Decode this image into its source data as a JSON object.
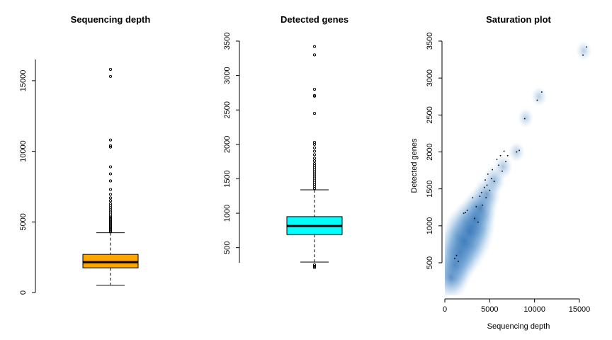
{
  "chart_data": [
    {
      "type": "boxplot",
      "title": "Sequencing depth",
      "xlabel": "",
      "ylabel": "",
      "ylim": [
        0,
        16500
      ],
      "yticks": [
        0,
        5000,
        10000,
        15000
      ],
      "yticklabels": [
        "0",
        "5000",
        "10000",
        "15000"
      ],
      "fill_color": "#FFA500",
      "box": {
        "whisker_low": 520,
        "q1": 1750,
        "median": 2150,
        "q3": 2700,
        "whisker_high": 4230
      },
      "outliers": [
        4300,
        4380,
        4450,
        4520,
        4600,
        4680,
        4750,
        4830,
        4900,
        4980,
        5050,
        5130,
        5200,
        5300,
        5400,
        5550,
        5700,
        5850,
        6000,
        6150,
        6300,
        6500,
        6700,
        6950,
        7300,
        7900,
        8400,
        8900,
        10300,
        10400,
        10800,
        15300,
        15800
      ]
    },
    {
      "type": "boxplot",
      "title": "Detected genes",
      "xlabel": "",
      "ylabel": "",
      "ylim": [
        270,
        3500
      ],
      "yticks": [
        500,
        1000,
        1500,
        2000,
        2500,
        3000,
        3500
      ],
      "yticklabels": [
        "500",
        "1000",
        "1500",
        "2000",
        "2500",
        "3000",
        "3500"
      ],
      "fill_color": "#00FFFF",
      "box": {
        "whisker_low": 290,
        "q1": 690,
        "median": 815,
        "q3": 950,
        "whisker_high": 1340
      },
      "outliers": [
        210,
        230,
        250,
        1360,
        1390,
        1420,
        1450,
        1480,
        1510,
        1540,
        1570,
        1600,
        1630,
        1660,
        1690,
        1720,
        1760,
        1800,
        1850,
        1900,
        1950,
        2000,
        2030,
        2450,
        2700,
        2710,
        2800,
        3300,
        3420
      ]
    },
    {
      "type": "scatter",
      "title": "Saturation plot",
      "xlabel": "Sequencing depth",
      "ylabel": "Detected genes",
      "xlim": [
        0,
        16200
      ],
      "ylim": [
        130,
        3520
      ],
      "xticks": [
        0,
        5000,
        10000,
        15000
      ],
      "xticklabels": [
        "0",
        "5000",
        "10000",
        "15000"
      ],
      "yticks": [
        500,
        1000,
        1500,
        2000,
        2500,
        3000,
        3500
      ],
      "yticklabels": [
        "500",
        "1000",
        "1500",
        "2000",
        "2500",
        "3000",
        "3500"
      ],
      "density_color": "#1F5FA8",
      "density_blobs": [
        {
          "x": 700,
          "y": 300,
          "w": 0.6
        },
        {
          "x": 1200,
          "y": 480,
          "w": 0.7
        },
        {
          "x": 1700,
          "y": 650,
          "w": 0.85
        },
        {
          "x": 2200,
          "y": 800,
          "w": 1.0
        },
        {
          "x": 2800,
          "y": 930,
          "w": 0.95
        },
        {
          "x": 3400,
          "y": 1080,
          "w": 0.75
        },
        {
          "x": 4000,
          "y": 1250,
          "w": 0.55
        },
        {
          "x": 4700,
          "y": 1430,
          "w": 0.38
        },
        {
          "x": 5500,
          "y": 1620,
          "w": 0.25
        },
        {
          "x": 6500,
          "y": 1800,
          "w": 0.15
        },
        {
          "x": 8000,
          "y": 2000,
          "w": 0.08
        },
        {
          "x": 9000,
          "y": 2460,
          "w": 0.06
        },
        {
          "x": 10500,
          "y": 2750,
          "w": 0.06
        },
        {
          "x": 15500,
          "y": 3370,
          "w": 0.06
        }
      ],
      "points": [
        [
          1100,
          560
        ],
        [
          1300,
          600
        ],
        [
          1500,
          520
        ],
        [
          2100,
          1170
        ],
        [
          2300,
          1180
        ],
        [
          2500,
          1210
        ],
        [
          3100,
          1380
        ],
        [
          3300,
          1100
        ],
        [
          3500,
          1260
        ],
        [
          3700,
          1050
        ],
        [
          3900,
          1400
        ],
        [
          4100,
          1450
        ],
        [
          4200,
          1280
        ],
        [
          4400,
          1520
        ],
        [
          4500,
          1620
        ],
        [
          4600,
          1380
        ],
        [
          4700,
          1550
        ],
        [
          4800,
          1700
        ],
        [
          5000,
          1480
        ],
        [
          5200,
          1640
        ],
        [
          5300,
          1760
        ],
        [
          5500,
          1600
        ],
        [
          5800,
          1900
        ],
        [
          6000,
          1820
        ],
        [
          6200,
          1950
        ],
        [
          6400,
          1740
        ],
        [
          6600,
          2010
        ],
        [
          6800,
          1870
        ],
        [
          7000,
          1950
        ],
        [
          8000,
          2000
        ],
        [
          8300,
          2020
        ],
        [
          8900,
          2450
        ],
        [
          10300,
          2700
        ],
        [
          10800,
          2810
        ],
        [
          15400,
          3310
        ],
        [
          15800,
          3420
        ]
      ]
    }
  ]
}
